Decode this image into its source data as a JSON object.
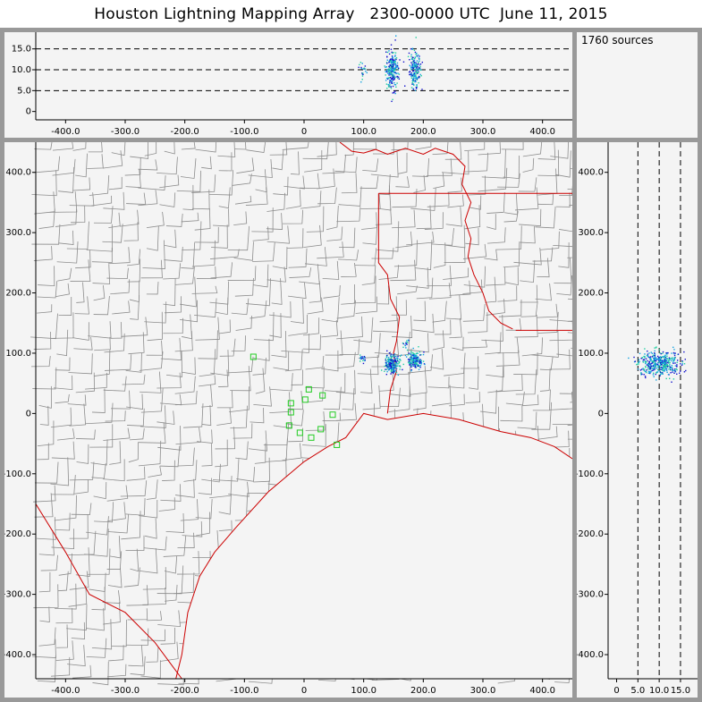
{
  "title": "Houston Lightning Mapping Array   2300-0000 UTC  June 11, 2015",
  "sources_label": "1760 sources",
  "colors": {
    "background": "#f4f4f4",
    "frame": "#999999",
    "county_lines": "#8c8c8c",
    "state_coast_lines": "#cc0000",
    "station_markers": "#22cc22",
    "source_low": "#1010cc",
    "source_mid": "#10a0e0",
    "source_high": "#20d0a0"
  },
  "altitude_panel": {
    "y_ticks": [
      "15.0",
      "10.0",
      "5.0",
      "0"
    ],
    "x_ticks": [
      "-400.0",
      "-300.0",
      "-200.0",
      "-100.0",
      "0",
      "100.0",
      "200.0",
      "300.0",
      "400.0"
    ]
  },
  "map_panel": {
    "y_ticks": [
      "400.0",
      "300.0",
      "200.0",
      "100.0",
      "0",
      "-100.0",
      "-200.0",
      "-300.0",
      "-400.0"
    ],
    "x_ticks": [
      "-400.0",
      "-300.0",
      "-200.0",
      "-100.0",
      "0",
      "100.0",
      "200.0",
      "300.0",
      "400.0"
    ]
  },
  "side_panel": {
    "y_ticks": [
      "400.0",
      "300.0",
      "200.0",
      "100.0",
      "0",
      "-100.0",
      "-200.0",
      "-300.0",
      "-400.0"
    ],
    "x_ticks": [
      "0",
      "5.0",
      "10.0",
      "15.0"
    ]
  },
  "chart_data": {
    "type": "scatter",
    "title": "Houston Lightning Mapping Array   2300-0000 UTC  June 11, 2015",
    "source_count_label": "1760 sources",
    "plan_view": {
      "xlim": [
        -450,
        450
      ],
      "ylim": [
        -440,
        450
      ],
      "x_ticks": [
        -400,
        -300,
        -200,
        -100,
        0,
        100,
        200,
        300,
        400
      ],
      "y_ticks": [
        -400,
        -300,
        -200,
        -100,
        0,
        100,
        200,
        300,
        400
      ],
      "source_clusters": [
        {
          "x": 97,
          "y": 92,
          "spread_x": 3,
          "spread_y": 3,
          "count": 20
        },
        {
          "x": 147,
          "y": 82,
          "spread_x": 6,
          "spread_y": 8,
          "count": 230
        },
        {
          "x": 185,
          "y": 89,
          "spread_x": 6,
          "spread_y": 8,
          "count": 180
        },
        {
          "x": 170,
          "y": 118,
          "spread_x": 3,
          "spread_y": 3,
          "count": 15
        }
      ],
      "stations": [
        {
          "x": -85,
          "y": 94
        },
        {
          "x": -22,
          "y": 17
        },
        {
          "x": 8,
          "y": 40
        },
        {
          "x": 31,
          "y": 30
        },
        {
          "x": 2,
          "y": 23
        },
        {
          "x": -22,
          "y": 2
        },
        {
          "x": 48,
          "y": -2
        },
        {
          "x": -25,
          "y": -20
        },
        {
          "x": -7,
          "y": -32
        },
        {
          "x": 28,
          "y": -26
        },
        {
          "x": 12,
          "y": -40
        },
        {
          "x": 55,
          "y": -52
        }
      ]
    },
    "altitude_vs_x": {
      "xlim": [
        -450,
        450
      ],
      "ylim": [
        -2,
        19
      ],
      "ylabel_ticks": [
        0,
        5,
        10,
        15
      ],
      "dashed_lines": [
        5,
        10,
        15
      ],
      "source_clusters": [
        {
          "x": 97,
          "z": 10,
          "spread_x": 3,
          "spread_z": 1.0,
          "count": 20
        },
        {
          "x": 147,
          "z": 10,
          "spread_x": 5,
          "spread_z": 2.5,
          "count": 230
        },
        {
          "x": 185,
          "z": 10,
          "spread_x": 5,
          "spread_z": 2.2,
          "count": 180
        }
      ]
    },
    "altitude_vs_y": {
      "xlim": [
        -2,
        19
      ],
      "ylim": [
        -440,
        450
      ],
      "x_ticks": [
        0,
        5,
        10,
        15
      ],
      "dashed_lines": [
        5,
        10,
        15
      ],
      "source_clusters": [
        {
          "z": 10,
          "y": 84,
          "spread_z": 2.5,
          "spread_y": 10,
          "count": 430
        }
      ]
    }
  }
}
